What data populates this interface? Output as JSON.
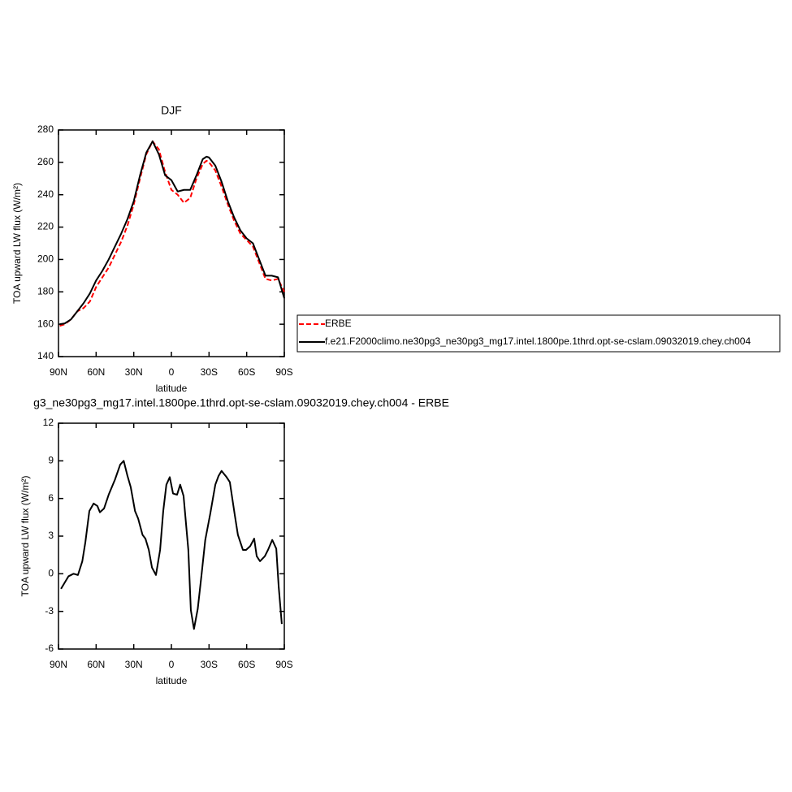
{
  "chart_data": [
    {
      "type": "line",
      "title": "DJF",
      "xlabel": "latitude",
      "ylabel": "TOA upward LW flux (W/m²)",
      "x": [
        89,
        85,
        80,
        75,
        70,
        65,
        60,
        55,
        50,
        45,
        40,
        35,
        30,
        25,
        20,
        15,
        10,
        5,
        0,
        -5,
        -10,
        -15,
        -20,
        -25,
        -28,
        -30,
        -35,
        -40,
        -45,
        -50,
        -55,
        -60,
        -65,
        -70,
        -75,
        -80,
        -85,
        -90
      ],
      "series": [
        {
          "name": "ERBE",
          "color": "#ff0000",
          "dashed": true,
          "values": [
            159,
            160,
            163,
            168,
            170,
            174,
            183,
            189,
            195,
            203,
            211,
            221,
            234,
            250,
            265,
            273,
            268,
            254,
            243,
            240,
            235,
            238,
            250,
            259,
            261,
            260,
            255,
            245,
            234,
            224,
            216,
            212,
            208,
            198,
            188,
            187,
            188,
            180
          ]
        },
        {
          "name": "f.e21.F2000climo.ne30pg3_ne30pg3_mg17.intel.1800pe.1thrd.opt-se-cslam.09032019.chey.ch004",
          "color": "#000000",
          "dashed": false,
          "values": [
            160,
            160.5,
            163,
            168,
            173,
            179,
            187,
            193,
            200,
            208,
            216,
            225,
            236,
            252,
            266,
            273,
            265,
            252,
            249,
            242,
            243,
            243,
            252,
            262,
            263.5,
            263,
            258,
            248,
            236,
            226,
            218,
            213,
            210,
            200,
            190,
            190,
            189,
            176
          ]
        }
      ],
      "xlim": [
        90,
        -90
      ],
      "xticks": [
        {
          "value": 90,
          "label": "90N"
        },
        {
          "value": 60,
          "label": "60N"
        },
        {
          "value": 30,
          "label": "30N"
        },
        0,
        {
          "value": -30,
          "label": "30S"
        },
        {
          "value": -60,
          "label": "60S"
        },
        {
          "value": -90,
          "label": "90S"
        }
      ],
      "ylim": [
        140,
        280
      ],
      "yticks": [
        140,
        160,
        180,
        200,
        220,
        240,
        260,
        280
      ],
      "grid": false,
      "legend": "right"
    },
    {
      "type": "line",
      "title": "g3_ne30pg3_mg17.intel.1800pe.1thrd.opt-se-cslam.09032019.chey.ch004 - ERBE",
      "xlabel": "latitude",
      "ylabel": "TOA upward LW flux (W/m²)",
      "x": [
        88,
        82,
        78,
        74.5,
        71,
        68.6,
        65.4,
        62,
        59,
        57,
        53.7,
        50,
        45,
        40.8,
        38,
        35,
        32.4,
        29,
        26.5,
        23,
        20.7,
        18,
        15.5,
        12.3,
        9,
        6.5,
        4,
        1.3,
        -1.3,
        -4.5,
        -7,
        -9.7,
        -13.5,
        -15.5,
        -18,
        -21,
        -24,
        -27,
        -31,
        -35,
        -37.6,
        -40,
        -44,
        -46.6,
        -50.5,
        -53,
        -57,
        -59.5,
        -62.8,
        -66,
        -68,
        -70.6,
        -74.5,
        -77,
        -80.4,
        -83.6,
        -85.5,
        -88
      ],
      "values": [
        -1.2,
        -0.2,
        0,
        -0.1,
        1,
        2.5,
        5,
        5.6,
        5.4,
        4.9,
        5.2,
        6.3,
        7.5,
        8.7,
        9,
        7.8,
        6.9,
        5,
        4.4,
        3.1,
        2.8,
        1.9,
        0.5,
        -0.1,
        1.9,
        5,
        7.1,
        7.7,
        6.4,
        6.3,
        7.1,
        6.2,
        1.9,
        -2.9,
        -4.4,
        -2.8,
        -0.1,
        2.7,
        4.8,
        7.1,
        7.8,
        8.2,
        7.7,
        7.3,
        4.7,
        3.1,
        1.9,
        1.9,
        2.2,
        2.8,
        1.4,
        1,
        1.4,
        1.9,
        2.7,
        2,
        -1,
        -4
      ],
      "color": "#000000",
      "xlim": [
        90,
        -90
      ],
      "xticks": [
        {
          "value": 90,
          "label": "90N"
        },
        {
          "value": 60,
          "label": "60N"
        },
        {
          "value": 30,
          "label": "30N"
        },
        0,
        {
          "value": -30,
          "label": "30S"
        },
        {
          "value": -60,
          "label": "60S"
        },
        {
          "value": -90,
          "label": "90S"
        }
      ],
      "ylim": [
        -6,
        12
      ],
      "yticks": [
        -6,
        -3,
        0,
        3,
        6,
        9,
        12
      ],
      "grid": false
    }
  ]
}
